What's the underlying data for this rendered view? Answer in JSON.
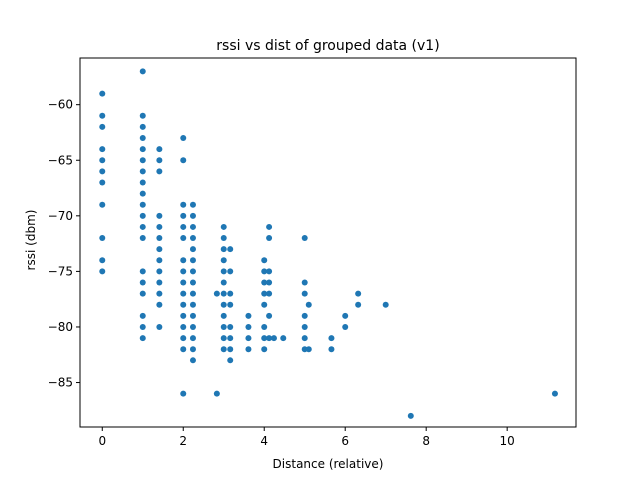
{
  "chart_data": {
    "type": "scatter",
    "title": "rssi vs dist of grouped data (v1)",
    "xlabel": "Distance (relative)",
    "ylabel": "rssi (dbm)",
    "xlim": [
      -0.55,
      11.7
    ],
    "ylim": [
      -89.0,
      -55.8
    ],
    "xticks": [
      0,
      2,
      4,
      6,
      8,
      10
    ],
    "yticks": [
      -85,
      -80,
      -75,
      -70,
      -65,
      -60
    ],
    "xtick_labels": [
      "0",
      "2",
      "4",
      "6",
      "8",
      "10"
    ],
    "ytick_labels": [
      "−85",
      "−80",
      "−75",
      "−70",
      "−65",
      "−60"
    ],
    "grid": false,
    "marker_color": "#1f77b4",
    "series": [
      {
        "points": [
          [
            0,
            -59
          ],
          [
            0,
            -61
          ],
          [
            0,
            -62
          ],
          [
            0,
            -64
          ],
          [
            0,
            -65
          ],
          [
            0,
            -66
          ],
          [
            0,
            -67
          ],
          [
            0,
            -69
          ],
          [
            0,
            -72
          ],
          [
            0,
            -74
          ],
          [
            0,
            -75
          ],
          [
            1,
            -57
          ],
          [
            1,
            -61
          ],
          [
            1,
            -62
          ],
          [
            1,
            -63
          ],
          [
            1,
            -64
          ],
          [
            1,
            -65
          ],
          [
            1,
            -66
          ],
          [
            1,
            -67
          ],
          [
            1,
            -68
          ],
          [
            1,
            -69
          ],
          [
            1,
            -70
          ],
          [
            1,
            -71
          ],
          [
            1,
            -72
          ],
          [
            1,
            -75
          ],
          [
            1,
            -76
          ],
          [
            1,
            -77
          ],
          [
            1,
            -79
          ],
          [
            1,
            -80
          ],
          [
            1,
            -81
          ],
          [
            1.41,
            -64
          ],
          [
            1.41,
            -65
          ],
          [
            1.41,
            -66
          ],
          [
            1.41,
            -70
          ],
          [
            1.41,
            -71
          ],
          [
            1.41,
            -72
          ],
          [
            1.41,
            -73
          ],
          [
            1.41,
            -74
          ],
          [
            1.41,
            -75
          ],
          [
            1.41,
            -76
          ],
          [
            1.41,
            -77
          ],
          [
            1.41,
            -78
          ],
          [
            1.41,
            -80
          ],
          [
            2,
            -63
          ],
          [
            2,
            -65
          ],
          [
            2,
            -69
          ],
          [
            2,
            -70
          ],
          [
            2,
            -71
          ],
          [
            2,
            -72
          ],
          [
            2,
            -74
          ],
          [
            2,
            -75
          ],
          [
            2,
            -76
          ],
          [
            2,
            -77
          ],
          [
            2,
            -78
          ],
          [
            2,
            -79
          ],
          [
            2,
            -80
          ],
          [
            2,
            -81
          ],
          [
            2,
            -82
          ],
          [
            2,
            -86
          ],
          [
            2.24,
            -69
          ],
          [
            2.24,
            -70
          ],
          [
            2.24,
            -71
          ],
          [
            2.24,
            -72
          ],
          [
            2.24,
            -73
          ],
          [
            2.24,
            -74
          ],
          [
            2.24,
            -75
          ],
          [
            2.24,
            -76
          ],
          [
            2.24,
            -77
          ],
          [
            2.24,
            -78
          ],
          [
            2.24,
            -79
          ],
          [
            2.24,
            -80
          ],
          [
            2.24,
            -81
          ],
          [
            2.24,
            -82
          ],
          [
            2.24,
            -83
          ],
          [
            2.83,
            -77
          ],
          [
            2.83,
            -86
          ],
          [
            3,
            -71
          ],
          [
            3,
            -72
          ],
          [
            3,
            -73
          ],
          [
            3,
            -74
          ],
          [
            3,
            -75
          ],
          [
            3,
            -76
          ],
          [
            3,
            -77
          ],
          [
            3,
            -78
          ],
          [
            3,
            -79
          ],
          [
            3,
            -80
          ],
          [
            3,
            -81
          ],
          [
            3,
            -82
          ],
          [
            3.16,
            -73
          ],
          [
            3.16,
            -75
          ],
          [
            3.16,
            -77
          ],
          [
            3.16,
            -78
          ],
          [
            3.16,
            -80
          ],
          [
            3.16,
            -81
          ],
          [
            3.16,
            -82
          ],
          [
            3.16,
            -83
          ],
          [
            3.61,
            -79
          ],
          [
            3.61,
            -80
          ],
          [
            3.61,
            -81
          ],
          [
            3.61,
            -82
          ],
          [
            4,
            -74
          ],
          [
            4,
            -75
          ],
          [
            4,
            -76
          ],
          [
            4,
            -77
          ],
          [
            4,
            -78
          ],
          [
            4,
            -80
          ],
          [
            4,
            -81
          ],
          [
            4,
            -82
          ],
          [
            4.12,
            -71
          ],
          [
            4.12,
            -72
          ],
          [
            4.12,
            -75
          ],
          [
            4.12,
            -76
          ],
          [
            4.12,
            -77
          ],
          [
            4.12,
            -79
          ],
          [
            4.12,
            -81
          ],
          [
            4.24,
            -81
          ],
          [
            4.47,
            -81
          ],
          [
            5,
            -72
          ],
          [
            5,
            -76
          ],
          [
            5,
            -77
          ],
          [
            5,
            -79
          ],
          [
            5,
            -80
          ],
          [
            5,
            -81
          ],
          [
            5,
            -82
          ],
          [
            5.1,
            -78
          ],
          [
            5.1,
            -82
          ],
          [
            5.66,
            -81
          ],
          [
            5.66,
            -82
          ],
          [
            6,
            -79
          ],
          [
            6,
            -80
          ],
          [
            6.32,
            -77
          ],
          [
            6.32,
            -78
          ],
          [
            7,
            -78
          ],
          [
            7.62,
            -88
          ],
          [
            11.18,
            -86
          ]
        ]
      }
    ]
  }
}
